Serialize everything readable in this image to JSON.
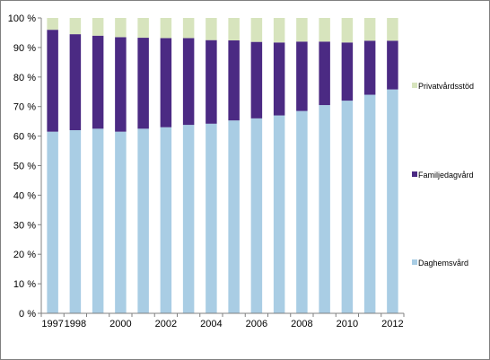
{
  "chart_data": {
    "type": "bar",
    "stacked": true,
    "percent": true,
    "categories": [
      "1997",
      "1998",
      "1999",
      "2000",
      "2001",
      "2002",
      "2003",
      "2004",
      "2005",
      "2006",
      "2007",
      "2008",
      "2009",
      "2010",
      "2011",
      "2012"
    ],
    "x_tick_labels": [
      "1997",
      "1998",
      "",
      "2000",
      "",
      "2002",
      "",
      "2004",
      "",
      "2006",
      "",
      "2008",
      "",
      "2010",
      "",
      "2012"
    ],
    "series": [
      {
        "name": "Daghemsvård",
        "color": "#a9cde4",
        "values": [
          61.5,
          62.0,
          62.5,
          61.5,
          62.5,
          63.0,
          63.8,
          64.2,
          65.3,
          66.0,
          67.0,
          68.5,
          70.5,
          72.0,
          74.0,
          75.8
        ]
      },
      {
        "name": "Familjedagvård",
        "color": "#4b2a83",
        "values": [
          34.5,
          32.5,
          31.5,
          32.0,
          30.8,
          30.2,
          29.4,
          28.3,
          27.1,
          25.9,
          24.7,
          23.5,
          21.5,
          19.7,
          18.3,
          16.5
        ]
      },
      {
        "name": "Privatvårdsstöd",
        "color": "#d7e4bd",
        "values": [
          4.0,
          5.5,
          6.0,
          6.5,
          6.7,
          6.8,
          6.8,
          7.5,
          7.6,
          8.1,
          8.3,
          8.0,
          8.0,
          8.3,
          7.7,
          7.7
        ]
      }
    ],
    "ylim": [
      0,
      100
    ],
    "y_ticks": [
      "0 %",
      "10 %",
      "20 %",
      "30 %",
      "40 %",
      "50 %",
      "60 %",
      "70 %",
      "80 %",
      "90 %",
      "100 %"
    ],
    "grid": false,
    "legend_position": "right",
    "title": "",
    "xlabel": "",
    "ylabel": ""
  }
}
